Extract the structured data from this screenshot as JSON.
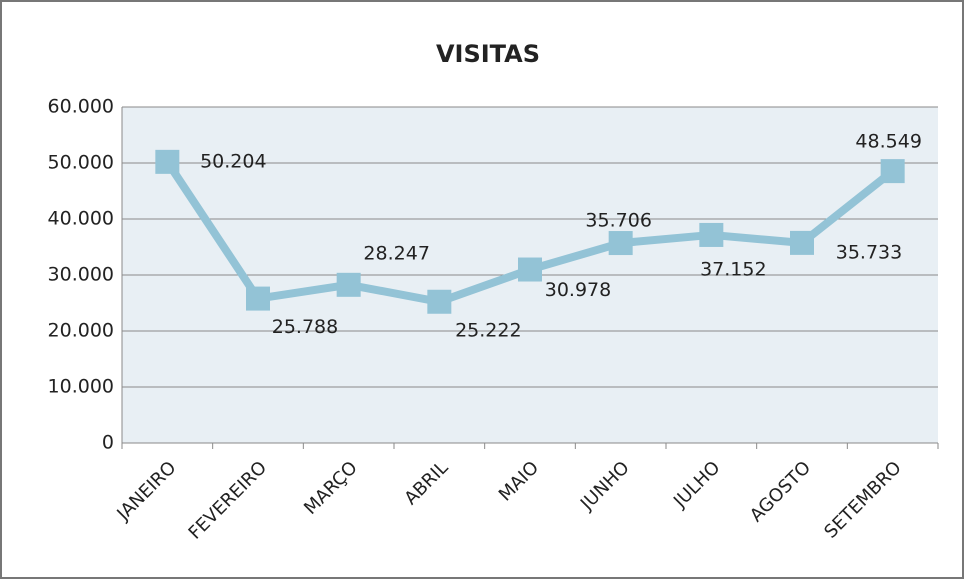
{
  "chart_data": {
    "type": "line",
    "title": "VISITAS",
    "categories": [
      "JANEIRO",
      "FEVEREIRO",
      "MARÇO",
      "ABRIL",
      "MAIO",
      "JUNHO",
      "JULHO",
      "AGOSTO",
      "SETEMBRO"
    ],
    "series": [
      {
        "name": "VISITAS",
        "color": "#93c3d6",
        "values": [
          50204,
          25788,
          28247,
          25222,
          30978,
          35706,
          37152,
          35733,
          48549
        ],
        "value_labels": [
          "50.204",
          "25.788",
          "28.247",
          "25.222",
          "30.978",
          "35.706",
          "37.152",
          "35.733",
          "48.549"
        ]
      }
    ],
    "ylim": [
      0,
      60000
    ],
    "yticks": [
      0,
      {
        "value": 10000,
        "label": "10.000"
      },
      {
        "value": 20000,
        "label": "20.000"
      },
      {
        "value": 30000,
        "label": "30.000"
      },
      {
        "value": 40000,
        "label": "40.000"
      },
      {
        "value": 50000,
        "label": "50.000"
      },
      {
        "value": 60000,
        "label": "60.000"
      }
    ],
    "grid": true
  }
}
